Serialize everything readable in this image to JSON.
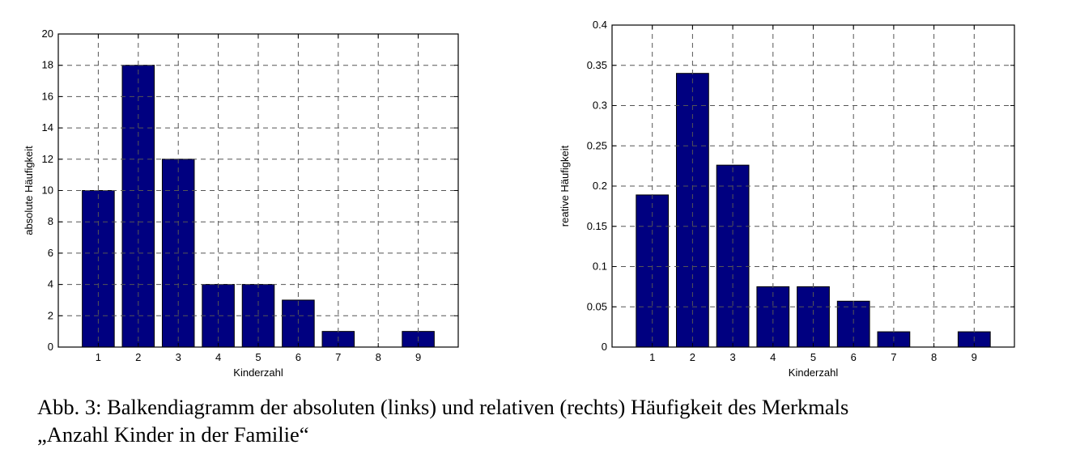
{
  "chart_data": [
    {
      "type": "bar",
      "title": "",
      "xlabel": "Kinderzahl",
      "ylabel": "absolute Häufigkeit",
      "categories": [
        "1",
        "2",
        "3",
        "4",
        "5",
        "6",
        "7",
        "8",
        "9"
      ],
      "values": [
        10,
        18,
        12,
        4,
        4,
        3,
        1,
        0,
        1
      ],
      "ylim": [
        0,
        20
      ],
      "yticks": [
        "0",
        "2",
        "4",
        "6",
        "8",
        "10",
        "12",
        "14",
        "16",
        "18",
        "20"
      ],
      "grid": true,
      "bar_color": "#000080"
    },
    {
      "type": "bar",
      "title": "",
      "xlabel": "Kinderzahl",
      "ylabel": "reative Häufigkeit",
      "categories": [
        "1",
        "2",
        "3",
        "4",
        "5",
        "6",
        "7",
        "8",
        "9"
      ],
      "values": [
        0.189,
        0.34,
        0.226,
        0.075,
        0.075,
        0.057,
        0.019,
        0,
        0.019
      ],
      "ylim": [
        0,
        0.4
      ],
      "yticks": [
        "0",
        "0.05",
        "0.1",
        "0.15",
        "0.2",
        "0.25",
        "0.3",
        "0.35",
        "0.4"
      ],
      "grid": true,
      "bar_color": "#000080"
    }
  ],
  "caption": {
    "line1": "Abb. 3: Balkendiagramm der absoluten (links) und relativen (rechts) Häufigkeit des Merkmals",
    "line2": "„Anzahl Kinder in der Familie“"
  }
}
